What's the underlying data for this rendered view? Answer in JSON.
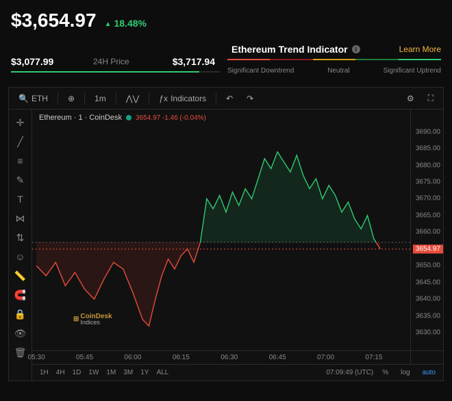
{
  "header": {
    "price": "$3,654.97",
    "pct_change": "18.48%",
    "direction": "up",
    "low_24h": "$3,077.99",
    "label_24h": "24H Price",
    "high_24h": "$3,717.94",
    "range_fill_pct": 90
  },
  "trend": {
    "title": "Ethereum Trend Indicator",
    "learn_more": "Learn More",
    "segments": [
      {
        "color": "#e74c3c"
      },
      {
        "color": "#8b1a1a"
      },
      {
        "color": "#d4a017"
      },
      {
        "color": "#1e7d3a"
      },
      {
        "color": "#2ecc71"
      }
    ],
    "labels": {
      "left": "Significant Downtrend",
      "center": "Neutral",
      "right": "Significant Uptrend"
    }
  },
  "toolbar": {
    "symbol": "ETH",
    "interval": "1m",
    "indicators_label": "Indicators"
  },
  "chart": {
    "title": "Ethereum · 1 · CoinDesk",
    "last_text": "3654.97  -1.46 (-0.04%)",
    "watermark_brand": "CoinDesk",
    "watermark_sub": "Indices",
    "y_axis": {
      "min": 3626,
      "max": 3692,
      "ticks": [
        3690,
        3685,
        3680,
        3675,
        3670,
        3665,
        3660,
        3655,
        3650,
        3645,
        3640,
        3635,
        3630
      ]
    },
    "current_price": 3654.97,
    "current_price_label": "3654.97",
    "baseline": 3657,
    "x_ticks": [
      "05:30",
      "05:45",
      "06:00",
      "06:15",
      "06:30",
      "06:45",
      "07:00",
      "07:15"
    ],
    "x_domain_min": 0,
    "x_domain_max": 115,
    "series": [
      {
        "t": 0,
        "v": 3650
      },
      {
        "t": 3,
        "v": 3647
      },
      {
        "t": 6,
        "v": 3651
      },
      {
        "t": 9,
        "v": 3644
      },
      {
        "t": 12,
        "v": 3648
      },
      {
        "t": 15,
        "v": 3643
      },
      {
        "t": 18,
        "v": 3640
      },
      {
        "t": 21,
        "v": 3646
      },
      {
        "t": 24,
        "v": 3651
      },
      {
        "t": 27,
        "v": 3649
      },
      {
        "t": 30,
        "v": 3642
      },
      {
        "t": 33,
        "v": 3634
      },
      {
        "t": 35,
        "v": 3632
      },
      {
        "t": 37,
        "v": 3640
      },
      {
        "t": 39,
        "v": 3647
      },
      {
        "t": 41,
        "v": 3652
      },
      {
        "t": 43,
        "v": 3649
      },
      {
        "t": 45,
        "v": 3653
      },
      {
        "t": 47,
        "v": 3655
      },
      {
        "t": 49,
        "v": 3651
      },
      {
        "t": 51,
        "v": 3657
      },
      {
        "t": 53,
        "v": 3670
      },
      {
        "t": 55,
        "v": 3667
      },
      {
        "t": 57,
        "v": 3671
      },
      {
        "t": 59,
        "v": 3666
      },
      {
        "t": 61,
        "v": 3672
      },
      {
        "t": 63,
        "v": 3668
      },
      {
        "t": 65,
        "v": 3673
      },
      {
        "t": 67,
        "v": 3670
      },
      {
        "t": 69,
        "v": 3676
      },
      {
        "t": 71,
        "v": 3682
      },
      {
        "t": 73,
        "v": 3679
      },
      {
        "t": 75,
        "v": 3684
      },
      {
        "t": 77,
        "v": 3681
      },
      {
        "t": 79,
        "v": 3678
      },
      {
        "t": 81,
        "v": 3683
      },
      {
        "t": 83,
        "v": 3677
      },
      {
        "t": 85,
        "v": 3673
      },
      {
        "t": 87,
        "v": 3676
      },
      {
        "t": 89,
        "v": 3670
      },
      {
        "t": 91,
        "v": 3674
      },
      {
        "t": 93,
        "v": 3671
      },
      {
        "t": 95,
        "v": 3666
      },
      {
        "t": 97,
        "v": 3669
      },
      {
        "t": 99,
        "v": 3664
      },
      {
        "t": 101,
        "v": 3661
      },
      {
        "t": 103,
        "v": 3665
      },
      {
        "t": 105,
        "v": 3658
      },
      {
        "t": 107,
        "v": 3655
      }
    ],
    "colors": {
      "up": "#2ecc71",
      "down": "#e74c3c",
      "up_fill": "rgba(46,204,113,0.12)",
      "down_fill": "rgba(231,76,60,0.12)",
      "grid": "#1f1f1f",
      "baseline": "#666"
    }
  },
  "timeframes": [
    "1H",
    "4H",
    "1D",
    "1W",
    "1M",
    "3M",
    "1Y",
    "ALL"
  ],
  "footer": {
    "time_text": "07:09:49 (UTC)",
    "pct_btn": "%",
    "log_btn": "log",
    "auto_btn": "auto"
  },
  "side_tools": [
    {
      "name": "cross-icon",
      "glyph": "✛"
    },
    {
      "name": "trendline-icon",
      "glyph": "╱"
    },
    {
      "name": "fib-icon",
      "glyph": "≡"
    },
    {
      "name": "brush-icon",
      "glyph": "✎"
    },
    {
      "name": "text-icon",
      "glyph": "T"
    },
    {
      "name": "pattern-icon",
      "glyph": "⋈"
    },
    {
      "name": "long-icon",
      "glyph": "⇅"
    },
    {
      "name": "emoji-icon",
      "glyph": "☺"
    },
    {
      "name": "ruler-icon",
      "glyph": "📏"
    },
    {
      "name": "magnet-icon",
      "glyph": "🧲"
    },
    {
      "name": "lock-icon",
      "glyph": "🔒"
    },
    {
      "name": "eye-icon",
      "glyph": "👁"
    },
    {
      "name": "trash-icon",
      "glyph": "🗑"
    }
  ]
}
